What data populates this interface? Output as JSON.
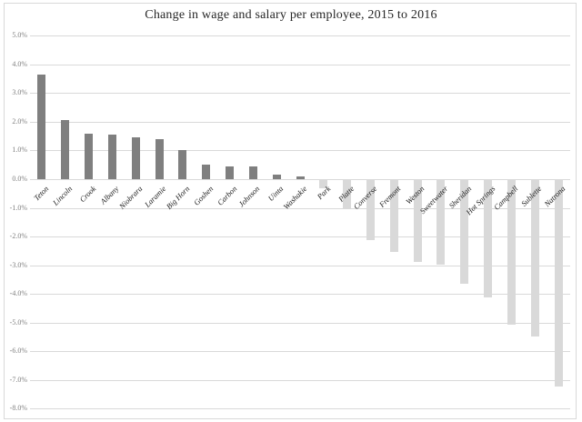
{
  "chart_data": {
    "type": "bar",
    "title": "Change in wage and salary per employee, 2015 to 2016",
    "xlabel": "",
    "ylabel": "",
    "categories": [
      "Teton",
      "Lincoln",
      "Crook",
      "Albany",
      "Niobrara",
      "Laramie",
      "Big Horn",
      "Goshen",
      "Carbon",
      "Johnson",
      "Uinta",
      "Washakie",
      "Park",
      "Platte",
      "Converse",
      "Fremont",
      "Weston",
      "Sweetwater",
      "Sheridan",
      "Hot Springs",
      "Campbell",
      "Sublette",
      "Natrona"
    ],
    "values": [
      3.65,
      2.05,
      1.6,
      1.55,
      1.45,
      1.4,
      1.0,
      0.5,
      0.45,
      0.45,
      0.15,
      0.1,
      -0.3,
      -1.0,
      -2.1,
      -2.5,
      -2.85,
      -2.95,
      -3.6,
      -4.1,
      -5.05,
      -5.45,
      -7.2
    ],
    "value_unit": "%",
    "ylim": [
      -8,
      5
    ],
    "ytick_step": 1,
    "ytick_labels": [
      "5.0%",
      "4.0%",
      "3.0%",
      "2.0%",
      "1.0%",
      "0.0%",
      "-1.0%",
      "-2.0%",
      "-3.0%",
      "-4.0%",
      "-5.0%",
      "-6.0%",
      "-7.0%",
      "-8.0%"
    ],
    "grid": true,
    "legend": false,
    "colors": {
      "positive_bar": "#7f7f7f",
      "negative_bar": "#d9d9d9",
      "gridline": "#d9d9d9",
      "tick_label": "#808080",
      "category_label": "#1a1a1a",
      "title": "#262626",
      "frame_border": "#d9d9d9",
      "background": "#ffffff"
    }
  }
}
